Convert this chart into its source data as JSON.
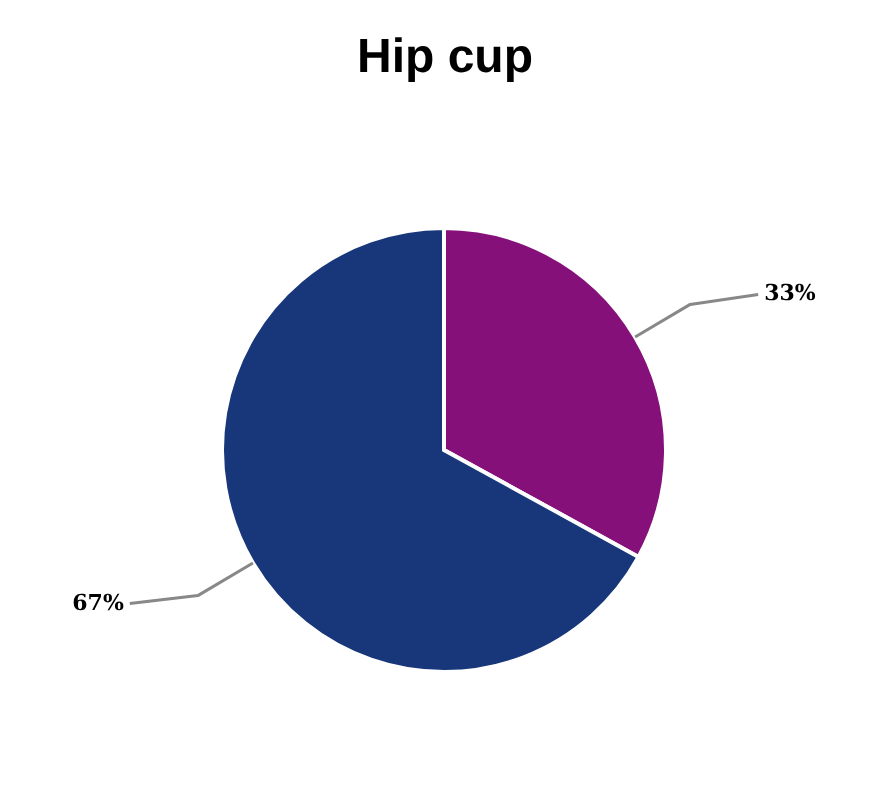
{
  "chart_data": {
    "type": "pie",
    "title": "Hip cup",
    "categories": [
      null,
      null
    ],
    "values": [
      33,
      67
    ],
    "colors": [
      "#85107a",
      "#17377a"
    ],
    "value_labels": [
      "33%",
      "67%"
    ]
  }
}
